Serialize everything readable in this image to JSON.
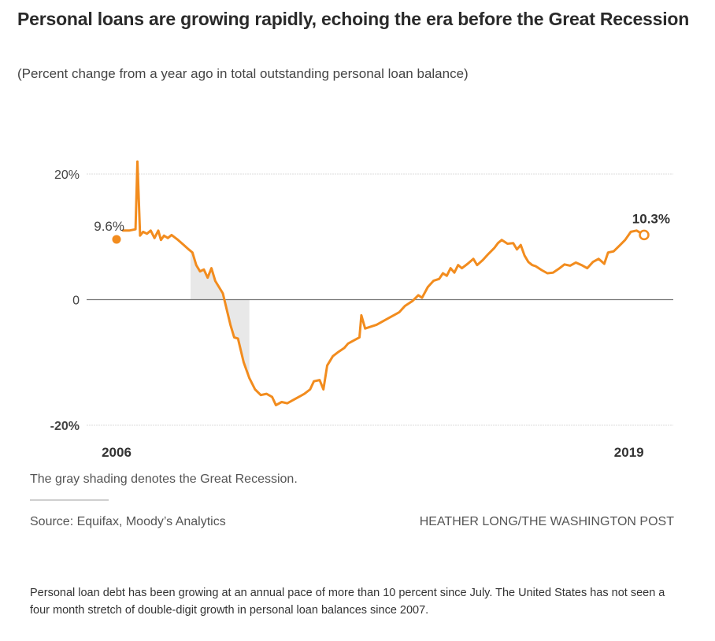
{
  "header": {
    "title": "Personal loans are growing rapidly, echoing the era before the Great Recession",
    "subtitle": "(Percent change from a year ago in total outstanding personal loan balance)"
  },
  "footer": {
    "note": "The gray shading denotes the Great Recession.",
    "source": "Source: Equifax, Moody’s Analytics",
    "credit": "HEATHER LONG/THE WASHINGTON POST",
    "caption": "Personal loan debt has been growing at an annual pace of more than 10 percent since July. The United States has not seen a four month stretch of double-digit growth in personal loan balances since 2007."
  },
  "colors": {
    "line": "#f28c1e",
    "recession": "#e8e8e8",
    "grid": "#dcdcdc",
    "zero": "#777777",
    "text": "#333333"
  },
  "chart_data": {
    "type": "line",
    "title": "Personal loans are growing rapidly, echoing the era before the Great Recession",
    "subtitle": "(Percent change from a year ago in total outstanding personal loan balance)",
    "xlabel": "",
    "ylabel": "",
    "x_range": [
      2006.0,
      2019.9
    ],
    "ylim": [
      -20,
      20
    ],
    "yticks": [
      20,
      0,
      -20
    ],
    "ytick_labels": [
      "20%",
      "0",
      "-20%"
    ],
    "xtick_labels": [
      {
        "x": 2006.0,
        "label": "2006"
      },
      {
        "x": 2019.5,
        "label": "2019"
      }
    ],
    "grid": true,
    "legend": "none",
    "shaded_regions": [
      {
        "label": "Great Recession",
        "start": 2007.95,
        "end": 2009.5
      }
    ],
    "annotations": [
      {
        "x": 2006.0,
        "y": 9.6,
        "label": "9.6%",
        "marker": "filled-dot"
      },
      {
        "x": 2019.9,
        "y": 10.3,
        "label": "10.3%",
        "marker": "open-circle"
      }
    ],
    "series": [
      {
        "name": "Personal loan balance, % change YoY",
        "points": [
          [
            2006.0,
            9.6
          ],
          [
            2006.17,
            11.0
          ],
          [
            2006.33,
            11.0
          ],
          [
            2006.5,
            11.2
          ],
          [
            2006.55,
            22.0
          ],
          [
            2006.62,
            10.2
          ],
          [
            2006.7,
            10.8
          ],
          [
            2006.8,
            10.5
          ],
          [
            2006.9,
            11.0
          ],
          [
            2007.0,
            9.8
          ],
          [
            2007.1,
            11.0
          ],
          [
            2007.17,
            9.5
          ],
          [
            2007.25,
            10.2
          ],
          [
            2007.35,
            9.8
          ],
          [
            2007.45,
            10.3
          ],
          [
            2007.6,
            9.6
          ],
          [
            2007.75,
            8.8
          ],
          [
            2007.9,
            8.0
          ],
          [
            2008.0,
            7.5
          ],
          [
            2008.1,
            5.5
          ],
          [
            2008.2,
            4.5
          ],
          [
            2008.3,
            4.8
          ],
          [
            2008.4,
            3.5
          ],
          [
            2008.5,
            5.0
          ],
          [
            2008.6,
            3.0
          ],
          [
            2008.7,
            2.0
          ],
          [
            2008.8,
            1.0
          ],
          [
            2008.9,
            -1.5
          ],
          [
            2009.0,
            -4.0
          ],
          [
            2009.1,
            -6.0
          ],
          [
            2009.2,
            -6.2
          ],
          [
            2009.35,
            -10.0
          ],
          [
            2009.5,
            -12.5
          ],
          [
            2009.65,
            -14.3
          ],
          [
            2009.8,
            -15.2
          ],
          [
            2009.95,
            -15.0
          ],
          [
            2010.1,
            -15.5
          ],
          [
            2010.2,
            -16.8
          ],
          [
            2010.35,
            -16.3
          ],
          [
            2010.5,
            -16.5
          ],
          [
            2010.65,
            -16.0
          ],
          [
            2010.8,
            -15.5
          ],
          [
            2010.95,
            -15.0
          ],
          [
            2011.1,
            -14.3
          ],
          [
            2011.2,
            -13.0
          ],
          [
            2011.35,
            -12.8
          ],
          [
            2011.45,
            -14.3
          ],
          [
            2011.55,
            -10.5
          ],
          [
            2011.7,
            -9.0
          ],
          [
            2011.85,
            -8.3
          ],
          [
            2012.0,
            -7.7
          ],
          [
            2012.1,
            -7.0
          ],
          [
            2012.25,
            -6.5
          ],
          [
            2012.4,
            -6.0
          ],
          [
            2012.45,
            -2.5
          ],
          [
            2012.55,
            -4.6
          ],
          [
            2012.7,
            -4.3
          ],
          [
            2012.85,
            -4.0
          ],
          [
            2013.0,
            -3.5
          ],
          [
            2013.15,
            -3.0
          ],
          [
            2013.3,
            -2.5
          ],
          [
            2013.45,
            -2.0
          ],
          [
            2013.6,
            -1.0
          ],
          [
            2013.8,
            -0.2
          ],
          [
            2013.95,
            0.7
          ],
          [
            2014.05,
            0.3
          ],
          [
            2014.2,
            2.0
          ],
          [
            2014.35,
            3.0
          ],
          [
            2014.5,
            3.3
          ],
          [
            2014.6,
            4.2
          ],
          [
            2014.7,
            3.8
          ],
          [
            2014.8,
            5.0
          ],
          [
            2014.9,
            4.3
          ],
          [
            2015.0,
            5.5
          ],
          [
            2015.1,
            5.0
          ],
          [
            2015.25,
            5.7
          ],
          [
            2015.4,
            6.5
          ],
          [
            2015.5,
            5.5
          ],
          [
            2015.65,
            6.3
          ],
          [
            2015.8,
            7.3
          ],
          [
            2015.95,
            8.2
          ],
          [
            2016.05,
            9.0
          ],
          [
            2016.15,
            9.5
          ],
          [
            2016.3,
            8.9
          ],
          [
            2016.45,
            9.0
          ],
          [
            2016.55,
            8.0
          ],
          [
            2016.65,
            8.7
          ],
          [
            2016.75,
            7.0
          ],
          [
            2016.85,
            6.0
          ],
          [
            2016.95,
            5.5
          ],
          [
            2017.05,
            5.3
          ],
          [
            2017.2,
            4.7
          ],
          [
            2017.35,
            4.2
          ],
          [
            2017.5,
            4.3
          ],
          [
            2017.65,
            4.9
          ],
          [
            2017.8,
            5.6
          ],
          [
            2017.95,
            5.4
          ],
          [
            2018.1,
            5.9
          ],
          [
            2018.25,
            5.5
          ],
          [
            2018.4,
            5.0
          ],
          [
            2018.55,
            6.0
          ],
          [
            2018.7,
            6.5
          ],
          [
            2018.85,
            5.7
          ],
          [
            2018.95,
            7.5
          ],
          [
            2019.1,
            7.7
          ],
          [
            2019.25,
            8.6
          ],
          [
            2019.4,
            9.5
          ],
          [
            2019.55,
            10.8
          ],
          [
            2019.7,
            11.0
          ],
          [
            2019.9,
            10.3
          ]
        ]
      }
    ]
  }
}
